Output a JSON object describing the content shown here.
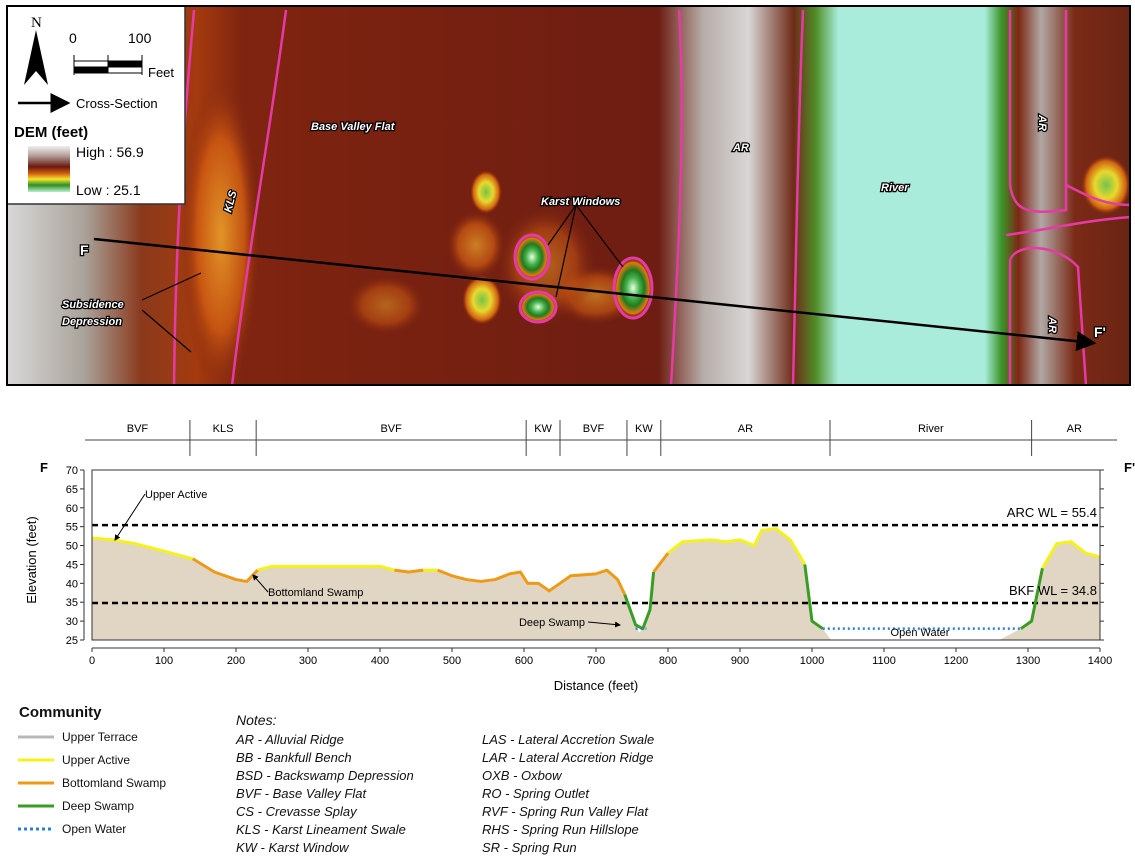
{
  "map": {
    "north_label": "N",
    "scale": {
      "zero": "0",
      "max": "100",
      "unit": "Feet"
    },
    "cross_section_label": "Cross-Section",
    "dem_title": "DEM (feet)",
    "dem_high": "High : 56.9",
    "dem_low": "Low : 25.1",
    "labels": {
      "base_valley_flat": "Base Valley Flat",
      "kls": "KLS",
      "subsidence_1": "Subsidence",
      "subsidence_2": "Depression",
      "karst_windows": "Karst Windows",
      "ar_center": "AR",
      "river": "River",
      "ar_top_right": "AR",
      "ar_bottom_right": "AR",
      "f_start": "F",
      "f_end": "F'"
    }
  },
  "profile": {
    "left_letter": "F",
    "right_letter": "F'",
    "upper_active_label": "Upper Active",
    "bottomland_label": "Bottomland Swamp",
    "deep_swamp_label": "Deep Swamp",
    "open_water_label": "Open Water",
    "arc_wl_label": "ARC WL = 55.4",
    "bkf_wl_label": "BKF WL = 34.8",
    "zones": [
      {
        "label": "BVF",
        "from": 0,
        "to": 136
      },
      {
        "label": "KLS",
        "from": 136,
        "to": 228
      },
      {
        "label": "BVF",
        "from": 228,
        "to": 603
      },
      {
        "label": "KW",
        "from": 603,
        "to": 650
      },
      {
        "label": "BVF",
        "from": 650,
        "to": 743
      },
      {
        "label": "KW",
        "from": 743,
        "to": 790
      },
      {
        "label": "AR",
        "from": 790,
        "to": 1025
      },
      {
        "label": "River",
        "from": 1025,
        "to": 1305
      },
      {
        "label": "AR",
        "from": 1305,
        "to": 1435
      }
    ]
  },
  "chart_data": {
    "type": "area",
    "xlabel": "Distance (feet)",
    "ylabel": "Elevation (feet)",
    "xlim": [
      0,
      1400
    ],
    "ylim": [
      25,
      70
    ],
    "x_ticks": [
      0,
      100,
      200,
      300,
      400,
      500,
      600,
      700,
      800,
      900,
      1000,
      1100,
      1200,
      1300,
      1400
    ],
    "y_ticks": [
      25,
      30,
      35,
      40,
      45,
      50,
      55,
      60,
      65,
      70
    ],
    "reference_lines": [
      {
        "name": "ARC WL = 55.4",
        "y": 55.4
      },
      {
        "name": "BKF WL = 34.8",
        "y": 34.8
      }
    ],
    "series": [
      {
        "name": "Upper Active",
        "color": "#f4f21a",
        "segments": [
          [
            [
              0,
              52
            ],
            [
              30,
              51.5
            ],
            [
              60,
              50.5
            ],
            [
              100,
              48.5
            ],
            [
              140,
              46.5
            ]
          ],
          [
            [
              230,
              43.5
            ],
            [
              250,
              44.5
            ],
            [
              300,
              44.5
            ],
            [
              350,
              44.5
            ],
            [
              400,
              44.5
            ],
            [
              420,
              43.5
            ]
          ],
          [
            [
              460,
              43.5
            ],
            [
              480,
              43.5
            ]
          ],
          [
            [
              800,
              48
            ],
            [
              820,
              51
            ],
            [
              860,
              51.5
            ],
            [
              880,
              51
            ],
            [
              900,
              51.5
            ],
            [
              920,
              50
            ],
            [
              930,
              54
            ],
            [
              950,
              54.5
            ],
            [
              970,
              51.5
            ],
            [
              990,
              45
            ]
          ],
          [
            [
              1320,
              44
            ],
            [
              1340,
              50.5
            ],
            [
              1360,
              51
            ],
            [
              1380,
              48
            ],
            [
              1400,
              47
            ]
          ]
        ]
      },
      {
        "name": "Bottomland Swamp",
        "color": "#ef9a16",
        "segments": [
          [
            [
              140,
              46.5
            ],
            [
              170,
              43
            ],
            [
              200,
              41
            ],
            [
              215,
              40.5
            ],
            [
              230,
              43.5
            ]
          ],
          [
            [
              420,
              43.5
            ],
            [
              440,
              43
            ],
            [
              460,
              43.5
            ]
          ],
          [
            [
              480,
              43.5
            ],
            [
              500,
              42
            ],
            [
              520,
              41
            ],
            [
              540,
              40.5
            ],
            [
              560,
              41
            ],
            [
              580,
              42.5
            ],
            [
              595,
              43
            ],
            [
              605,
              40
            ],
            [
              620,
              40
            ],
            [
              635,
              38
            ],
            [
              650,
              40
            ],
            [
              665,
              42
            ],
            [
              700,
              42.5
            ],
            [
              715,
              43.5
            ],
            [
              730,
              41
            ],
            [
              740,
              37
            ]
          ],
          [
            [
              780,
              43
            ],
            [
              800,
              48
            ]
          ]
        ]
      },
      {
        "name": "Deep Swamp",
        "color": "#3a9d23",
        "segments": [
          [
            [
              740,
              37
            ],
            [
              755,
              29
            ],
            [
              765,
              28
            ],
            [
              775,
              33
            ],
            [
              780,
              43
            ]
          ],
          [
            [
              990,
              45
            ],
            [
              1000,
              30
            ],
            [
              1015,
              28
            ]
          ],
          [
            [
              1290,
              28
            ],
            [
              1305,
              30
            ],
            [
              1320,
              44
            ]
          ]
        ]
      },
      {
        "name": "Open Water",
        "color": "#2a7fd4",
        "segments": [
          [
            [
              755,
              28
            ],
            [
              770,
              28
            ]
          ],
          [
            [
              1015,
              28
            ],
            [
              1290,
              28
            ]
          ]
        ]
      }
    ],
    "ground_profile": [
      [
        0,
        52
      ],
      [
        30,
        51.5
      ],
      [
        60,
        50.5
      ],
      [
        100,
        48.5
      ],
      [
        140,
        46.5
      ],
      [
        170,
        43
      ],
      [
        200,
        41
      ],
      [
        215,
        40.5
      ],
      [
        230,
        43.5
      ],
      [
        250,
        44.5
      ],
      [
        300,
        44.5
      ],
      [
        350,
        44.5
      ],
      [
        400,
        44.5
      ],
      [
        420,
        43.5
      ],
      [
        440,
        43
      ],
      [
        460,
        43.5
      ],
      [
        480,
        43.5
      ],
      [
        500,
        42
      ],
      [
        520,
        41
      ],
      [
        540,
        40.5
      ],
      [
        560,
        41
      ],
      [
        580,
        42.5
      ],
      [
        595,
        43
      ],
      [
        605,
        40
      ],
      [
        620,
        40
      ],
      [
        635,
        38
      ],
      [
        650,
        40
      ],
      [
        665,
        42
      ],
      [
        700,
        42.5
      ],
      [
        715,
        43.5
      ],
      [
        730,
        41
      ],
      [
        740,
        37
      ],
      [
        755,
        29
      ],
      [
        760,
        27
      ],
      [
        765,
        28
      ],
      [
        775,
        33
      ],
      [
        780,
        43
      ],
      [
        800,
        48
      ],
      [
        820,
        51
      ],
      [
        860,
        51.5
      ],
      [
        880,
        51
      ],
      [
        900,
        51.5
      ],
      [
        920,
        50
      ],
      [
        930,
        54
      ],
      [
        950,
        54.5
      ],
      [
        970,
        51.5
      ],
      [
        990,
        45
      ],
      [
        1000,
        30
      ],
      [
        1015,
        28
      ],
      [
        1030,
        24
      ],
      [
        1250,
        24
      ],
      [
        1270,
        26
      ],
      [
        1290,
        28
      ],
      [
        1305,
        30
      ],
      [
        1320,
        44
      ],
      [
        1340,
        50.5
      ],
      [
        1360,
        51
      ],
      [
        1380,
        48
      ],
      [
        1400,
        47
      ]
    ]
  },
  "legend": {
    "title": "Community",
    "items": [
      {
        "label": "Upper Terrace",
        "color": "#b8b8b8",
        "style": "solid"
      },
      {
        "label": "Upper Active",
        "color": "#f4f21a",
        "style": "solid"
      },
      {
        "label": "Bottomland Swamp",
        "color": "#ef9a16",
        "style": "solid"
      },
      {
        "label": "Deep Swamp",
        "color": "#3a9d23",
        "style": "solid"
      },
      {
        "label": "Open Water",
        "color": "#2a7fd4",
        "style": "dotted"
      }
    ]
  },
  "notes": {
    "title": "Notes:",
    "col1": [
      "AR - Alluvial Ridge",
      "BB - Bankfull Bench",
      "BSD - Backswamp Depression",
      "BVF - Base Valley Flat",
      "CS - Crevasse Splay",
      "KLS - Karst Lineament Swale",
      "KW - Karst Window"
    ],
    "col2": [
      "LAS - Lateral Accretion Swale",
      "LAR - Lateral Accretion Ridge",
      "OXB - Oxbow",
      "RO - Spring Outlet",
      "RVF - Spring Run Valley Flat",
      "RHS - Spring Run Hillslope",
      "SR - Spring Run"
    ]
  }
}
